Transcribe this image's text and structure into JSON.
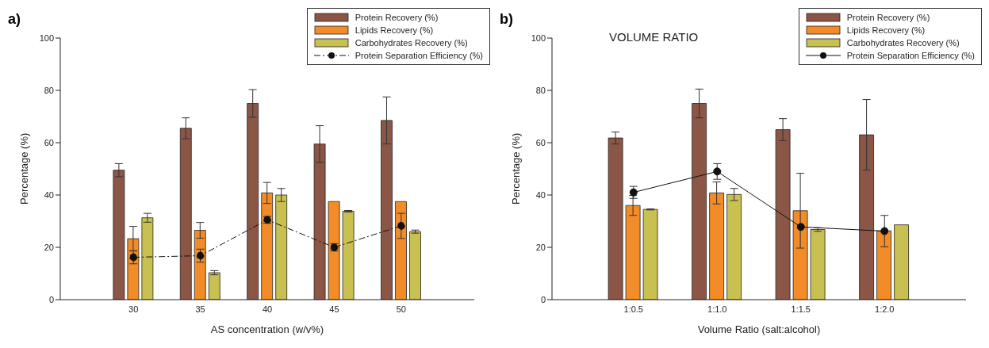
{
  "chart_data": [
    {
      "type": "bar",
      "annotations": [
        "a)"
      ],
      "xlabel": "AS concentration (w/v%)",
      "ylabel": "Percentage (%)",
      "categories": [
        "30",
        "35",
        "40",
        "45",
        "50"
      ],
      "ylim": [
        0,
        100
      ],
      "yticks": [
        0,
        20,
        40,
        60,
        80,
        100
      ],
      "grid": false,
      "legend": "top right",
      "series": [
        {
          "name": "Protein Recovery (%)",
          "color": "#8b5646",
          "values": [
            49.5,
            65.5,
            75,
            59.5,
            68.5
          ],
          "errors": [
            2.5,
            4,
            5.3,
            7,
            9
          ]
        },
        {
          "name": "Lipids Recovery (%)",
          "color": "#f28c28",
          "values": [
            23.3,
            26.5,
            40.8,
            37.5,
            37.5
          ],
          "errors": [
            4.7,
            3,
            4,
            null,
            null
          ]
        },
        {
          "name": "Carbohydrates Recovery (%)",
          "color": "#c8c050",
          "values": [
            31.3,
            10.3,
            40,
            33.8,
            26
          ],
          "errors": [
            1.7,
            0.8,
            2.5,
            0.3,
            0.6
          ]
        },
        {
          "name": "Protein Separation Efficiency (%)",
          "type": "line",
          "color": "#111111",
          "marker": "circle",
          "line_style": "dashed",
          "values": [
            16.2,
            16.8,
            30.5,
            20,
            28.2
          ],
          "errors": [
            2.5,
            2.5,
            1.3,
            1.4,
            4.8
          ]
        }
      ]
    },
    {
      "type": "bar",
      "annotations": [
        "b)"
      ],
      "title": "VOLUME RATIO",
      "xlabel": "Volume Ratio (salt:alcohol)",
      "ylabel": "Percentage (%)",
      "categories": [
        "1:0.5",
        "1:1.0",
        "1:1.5",
        "1:2.0"
      ],
      "ylim": [
        0,
        100
      ],
      "yticks": [
        0,
        20,
        40,
        60,
        80,
        100
      ],
      "grid": false,
      "legend": "top right",
      "series": [
        {
          "name": "Protein Recovery (%)",
          "color": "#8b5646",
          "values": [
            61.8,
            75,
            65,
            63
          ],
          "errors": [
            2.3,
            5.5,
            4.2,
            13.5
          ]
        },
        {
          "name": "Lipids Recovery (%)",
          "color": "#f28c28",
          "values": [
            36,
            40.8,
            34,
            26.3
          ],
          "errors": [
            3.8,
            4.2,
            14.3,
            null
          ]
        },
        {
          "name": "Carbohydrates Recovery (%)",
          "color": "#c8c050",
          "values": [
            34.5,
            40.2,
            26.8,
            28.6
          ],
          "errors": [
            0.2,
            2.3,
            0.7,
            null
          ]
        },
        {
          "name": "Protein Separation Efficiency (%)",
          "type": "line",
          "color": "#111111",
          "marker": "circle",
          "line_style": "solid",
          "values": [
            41,
            49,
            27.8,
            26.2
          ],
          "errors": [
            2.3,
            3,
            null,
            6
          ]
        }
      ]
    }
  ]
}
